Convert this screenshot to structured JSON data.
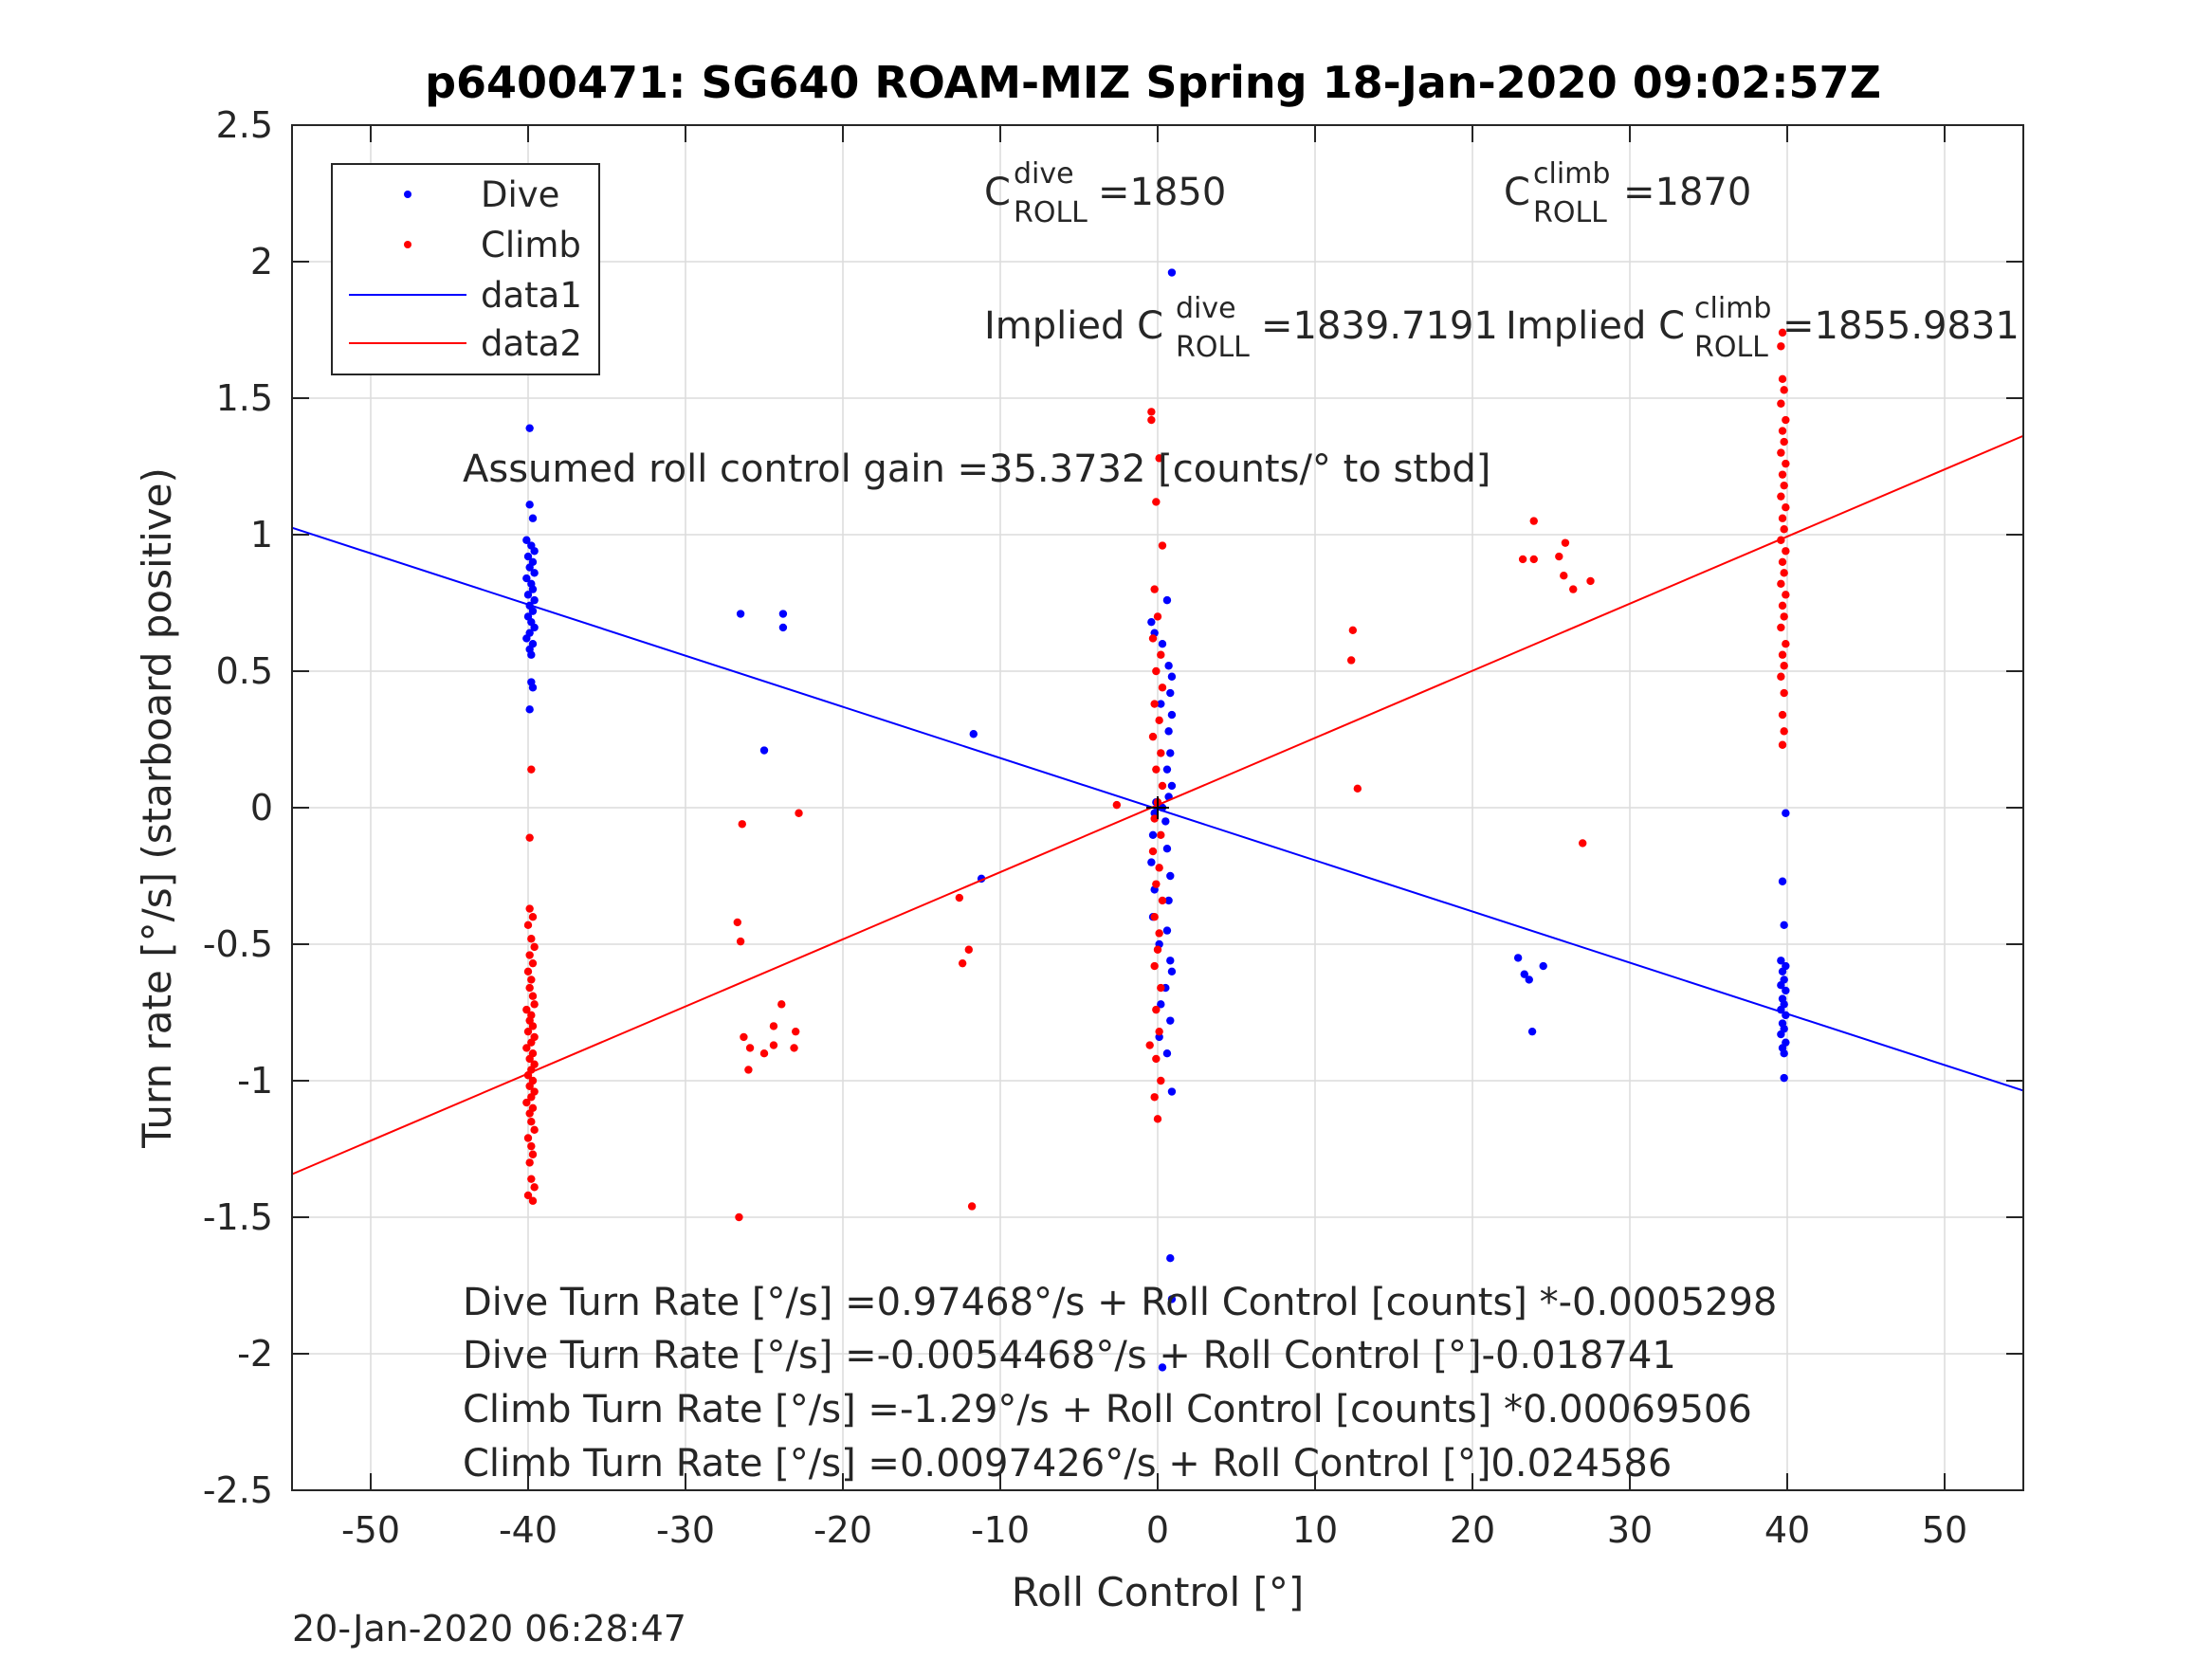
{
  "chart_data": {
    "type": "scatter",
    "title": "p6400471: SG640 ROAM-MIZ Spring 18-Jan-2020 09:02:57Z",
    "xlabel": "Roll Control [°]",
    "ylabel": "Turn rate [°/s] (starboard positive)",
    "xlim": [
      -55,
      55
    ],
    "ylim": [
      -2.5,
      2.5
    ],
    "xticks": [
      -50,
      -40,
      -30,
      -20,
      -10,
      0,
      10,
      20,
      30,
      40,
      50
    ],
    "yticks": [
      -2.5,
      -2,
      -1.5,
      -1,
      -0.5,
      0,
      0.5,
      1,
      1.5,
      2,
      2.5
    ],
    "xtick_labels": [
      "-50",
      "-40",
      "-30",
      "-20",
      "-10",
      "0",
      "10",
      "20",
      "30",
      "40",
      "50"
    ],
    "ytick_labels": [
      "-2.5",
      "-2",
      "-1.5",
      "-1",
      "-0.5",
      "0",
      "0.5",
      "1",
      "1.5",
      "2",
      "2.5"
    ],
    "grid": true,
    "legend_position": "top-left",
    "legend": [
      "Dive",
      "Climb",
      "data1",
      "data2"
    ],
    "colors": {
      "dive": "#0000ff",
      "climb": "#ff0000"
    },
    "series": [
      {
        "name": "Dive",
        "marker": "dot",
        "color": "#0000ff",
        "points": [
          [
            -39.9,
            1.39
          ],
          [
            -39.9,
            1.11
          ],
          [
            -39.7,
            1.06
          ],
          [
            -40.1,
            0.98
          ],
          [
            -39.8,
            0.96
          ],
          [
            -39.6,
            0.94
          ],
          [
            -40.0,
            0.92
          ],
          [
            -39.7,
            0.9
          ],
          [
            -39.9,
            0.88
          ],
          [
            -39.6,
            0.86
          ],
          [
            -40.1,
            0.84
          ],
          [
            -39.8,
            0.82
          ],
          [
            -39.7,
            0.8
          ],
          [
            -40.0,
            0.78
          ],
          [
            -39.6,
            0.76
          ],
          [
            -39.9,
            0.74
          ],
          [
            -39.7,
            0.72
          ],
          [
            -40.0,
            0.7
          ],
          [
            -39.8,
            0.68
          ],
          [
            -39.6,
            0.66
          ],
          [
            -39.9,
            0.64
          ],
          [
            -40.1,
            0.62
          ],
          [
            -39.7,
            0.6
          ],
          [
            -39.9,
            0.58
          ],
          [
            -39.8,
            0.56
          ],
          [
            -39.8,
            0.46
          ],
          [
            -39.7,
            0.44
          ],
          [
            -39.9,
            0.36
          ],
          [
            -26.5,
            0.71
          ],
          [
            -23.8,
            0.71
          ],
          [
            -23.8,
            0.66
          ],
          [
            -25.0,
            0.21
          ],
          [
            -11.7,
            0.27
          ],
          [
            -11.2,
            -0.26
          ],
          [
            0.9,
            1.96
          ],
          [
            0.6,
            0.76
          ],
          [
            -0.4,
            0.68
          ],
          [
            -0.2,
            0.64
          ],
          [
            0.3,
            0.6
          ],
          [
            0.7,
            0.52
          ],
          [
            0.9,
            0.48
          ],
          [
            0.8,
            0.42
          ],
          [
            0.2,
            0.38
          ],
          [
            0.9,
            0.34
          ],
          [
            0.7,
            0.28
          ],
          [
            0.8,
            0.2
          ],
          [
            0.6,
            0.14
          ],
          [
            0.9,
            0.08
          ],
          [
            0.7,
            0.04
          ],
          [
            -0.1,
            0.02
          ],
          [
            0.3,
            0.0
          ],
          [
            -0.2,
            -0.02
          ],
          [
            0.5,
            -0.05
          ],
          [
            -0.3,
            -0.1
          ],
          [
            0.6,
            -0.15
          ],
          [
            -0.4,
            -0.2
          ],
          [
            0.8,
            -0.25
          ],
          [
            -0.2,
            -0.3
          ],
          [
            0.7,
            -0.34
          ],
          [
            -0.3,
            -0.4
          ],
          [
            0.6,
            -0.45
          ],
          [
            0.1,
            -0.5
          ],
          [
            0.8,
            -0.56
          ],
          [
            0.9,
            -0.6
          ],
          [
            0.5,
            -0.66
          ],
          [
            0.2,
            -0.72
          ],
          [
            0.8,
            -0.78
          ],
          [
            0.1,
            -0.84
          ],
          [
            0.6,
            -0.9
          ],
          [
            0.9,
            -1.04
          ],
          [
            0.8,
            -1.65
          ],
          [
            0.9,
            -1.8
          ],
          [
            0.3,
            -2.05
          ],
          [
            22.9,
            -0.55
          ],
          [
            23.3,
            -0.61
          ],
          [
            23.6,
            -0.63
          ],
          [
            24.5,
            -0.58
          ],
          [
            23.8,
            -0.82
          ],
          [
            39.9,
            -0.02
          ],
          [
            39.7,
            -0.27
          ],
          [
            39.8,
            -0.43
          ],
          [
            39.6,
            -0.56
          ],
          [
            39.9,
            -0.58
          ],
          [
            39.7,
            -0.6
          ],
          [
            39.8,
            -0.63
          ],
          [
            39.6,
            -0.65
          ],
          [
            39.9,
            -0.67
          ],
          [
            39.7,
            -0.7
          ],
          [
            39.8,
            -0.72
          ],
          [
            39.6,
            -0.74
          ],
          [
            39.9,
            -0.76
          ],
          [
            39.7,
            -0.79
          ],
          [
            39.8,
            -0.81
          ],
          [
            39.6,
            -0.83
          ],
          [
            39.9,
            -0.86
          ],
          [
            39.7,
            -0.88
          ],
          [
            39.8,
            -0.9
          ],
          [
            39.8,
            -0.99
          ]
        ]
      },
      {
        "name": "Climb",
        "marker": "dot",
        "color": "#ff0000",
        "points": [
          [
            -39.8,
            0.14
          ],
          [
            -39.9,
            -0.11
          ],
          [
            -39.9,
            -0.37
          ],
          [
            -39.7,
            -0.4
          ],
          [
            -40.0,
            -0.43
          ],
          [
            -39.8,
            -0.48
          ],
          [
            -39.6,
            -0.51
          ],
          [
            -39.9,
            -0.54
          ],
          [
            -39.7,
            -0.57
          ],
          [
            -40.0,
            -0.6
          ],
          [
            -39.8,
            -0.63
          ],
          [
            -39.9,
            -0.66
          ],
          [
            -39.7,
            -0.69
          ],
          [
            -39.6,
            -0.72
          ],
          [
            -40.1,
            -0.74
          ],
          [
            -39.8,
            -0.76
          ],
          [
            -39.9,
            -0.78
          ],
          [
            -39.7,
            -0.8
          ],
          [
            -40.0,
            -0.82
          ],
          [
            -39.6,
            -0.84
          ],
          [
            -39.8,
            -0.86
          ],
          [
            -40.1,
            -0.88
          ],
          [
            -39.7,
            -0.9
          ],
          [
            -39.9,
            -0.92
          ],
          [
            -39.6,
            -0.94
          ],
          [
            -39.8,
            -0.96
          ],
          [
            -40.0,
            -0.98
          ],
          [
            -39.7,
            -1.0
          ],
          [
            -39.9,
            -1.02
          ],
          [
            -39.6,
            -1.04
          ],
          [
            -39.8,
            -1.06
          ],
          [
            -40.1,
            -1.08
          ],
          [
            -39.7,
            -1.1
          ],
          [
            -39.9,
            -1.12
          ],
          [
            -39.8,
            -1.15
          ],
          [
            -39.6,
            -1.18
          ],
          [
            -40.0,
            -1.21
          ],
          [
            -39.8,
            -1.24
          ],
          [
            -39.7,
            -1.27
          ],
          [
            -39.9,
            -1.3
          ],
          [
            -39.8,
            -1.36
          ],
          [
            -39.6,
            -1.39
          ],
          [
            -40.0,
            -1.42
          ],
          [
            -39.7,
            -1.44
          ],
          [
            -26.7,
            -0.42
          ],
          [
            -26.5,
            -0.49
          ],
          [
            -26.4,
            -0.06
          ],
          [
            -22.8,
            -0.02
          ],
          [
            -26.3,
            -0.84
          ],
          [
            -25.9,
            -0.88
          ],
          [
            -25.0,
            -0.9
          ],
          [
            -24.4,
            -0.8
          ],
          [
            -23.9,
            -0.72
          ],
          [
            -24.4,
            -0.87
          ],
          [
            -23.0,
            -0.82
          ],
          [
            -23.1,
            -0.88
          ],
          [
            -26.0,
            -0.96
          ],
          [
            -26.6,
            -1.5
          ],
          [
            -12.6,
            -0.33
          ],
          [
            -12.4,
            -0.57
          ],
          [
            -12.0,
            -0.52
          ],
          [
            -11.8,
            -1.46
          ],
          [
            -2.6,
            0.01
          ],
          [
            -0.4,
            1.45
          ],
          [
            -0.4,
            1.42
          ],
          [
            0.1,
            1.28
          ],
          [
            -0.1,
            1.12
          ],
          [
            0.3,
            0.96
          ],
          [
            -0.2,
            0.8
          ],
          [
            0.0,
            0.7
          ],
          [
            -0.3,
            0.62
          ],
          [
            0.2,
            0.56
          ],
          [
            -0.1,
            0.5
          ],
          [
            0.3,
            0.44
          ],
          [
            -0.2,
            0.38
          ],
          [
            0.1,
            0.32
          ],
          [
            -0.3,
            0.26
          ],
          [
            0.2,
            0.2
          ],
          [
            -0.1,
            0.14
          ],
          [
            0.3,
            0.08
          ],
          [
            0.0,
            0.02
          ],
          [
            -0.2,
            -0.04
          ],
          [
            0.2,
            -0.1
          ],
          [
            -0.3,
            -0.16
          ],
          [
            0.1,
            -0.22
          ],
          [
            -0.1,
            -0.28
          ],
          [
            0.3,
            -0.34
          ],
          [
            -0.2,
            -0.4
          ],
          [
            0.1,
            -0.46
          ],
          [
            0.0,
            -0.52
          ],
          [
            -0.2,
            -0.58
          ],
          [
            0.2,
            -0.66
          ],
          [
            -0.1,
            -0.74
          ],
          [
            0.1,
            -0.82
          ],
          [
            -0.5,
            -0.87
          ],
          [
            -0.1,
            -0.92
          ],
          [
            0.2,
            -1.0
          ],
          [
            -0.2,
            -1.06
          ],
          [
            0.0,
            -1.14
          ],
          [
            12.4,
            0.65
          ],
          [
            12.3,
            0.54
          ],
          [
            12.7,
            0.07
          ],
          [
            23.2,
            0.91
          ],
          [
            23.9,
            0.91
          ],
          [
            23.9,
            1.05
          ],
          [
            25.5,
            0.92
          ],
          [
            25.9,
            0.97
          ],
          [
            25.8,
            0.85
          ],
          [
            26.4,
            0.8
          ],
          [
            27.5,
            0.83
          ],
          [
            27.0,
            -0.13
          ],
          [
            39.7,
            1.74
          ],
          [
            39.6,
            1.69
          ],
          [
            39.7,
            1.57
          ],
          [
            39.8,
            1.53
          ],
          [
            39.6,
            1.48
          ],
          [
            39.9,
            1.42
          ],
          [
            39.7,
            1.38
          ],
          [
            39.8,
            1.34
          ],
          [
            39.6,
            1.3
          ],
          [
            39.9,
            1.26
          ],
          [
            39.7,
            1.22
          ],
          [
            39.8,
            1.18
          ],
          [
            39.6,
            1.14
          ],
          [
            39.9,
            1.1
          ],
          [
            39.7,
            1.06
          ],
          [
            39.8,
            1.02
          ],
          [
            39.6,
            0.98
          ],
          [
            39.9,
            0.94
          ],
          [
            39.7,
            0.9
          ],
          [
            39.8,
            0.86
          ],
          [
            39.6,
            0.82
          ],
          [
            39.9,
            0.78
          ],
          [
            39.7,
            0.74
          ],
          [
            39.8,
            0.7
          ],
          [
            39.6,
            0.66
          ],
          [
            39.9,
            0.6
          ],
          [
            39.7,
            0.56
          ],
          [
            39.8,
            0.52
          ],
          [
            39.6,
            0.48
          ],
          [
            39.8,
            0.42
          ],
          [
            39.7,
            0.34
          ],
          [
            39.8,
            0.28
          ],
          [
            39.7,
            0.23
          ]
        ]
      },
      {
        "name": "data1",
        "type": "line",
        "color": "#0000ff",
        "x": [
          -55,
          55
        ],
        "y": [
          1.0253,
          -1.0362
        ]
      },
      {
        "name": "data2",
        "type": "line",
        "color": "#ff0000",
        "x": [
          -55,
          55
        ],
        "y": [
          -1.3425,
          1.362
        ]
      }
    ],
    "annotations": {
      "c_dive_base": "C",
      "c_dive_sup": "dive",
      "c_dive_sub": "ROLL",
      "c_dive_value": " =1850",
      "c_climb_base": "C",
      "c_climb_sup": "climb",
      "c_climb_sub": "ROLL",
      "c_climb_value": " =1870",
      "implied_dive_prefix": "Implied C",
      "implied_dive_sup": "dive",
      "implied_dive_sub": "ROLL",
      "implied_dive_value": " =1839.7191",
      "implied_climb_prefix": "Implied C",
      "implied_climb_sup": "climb",
      "implied_climb_sub": "ROLL",
      "implied_climb_value": " =1855.9831",
      "gain": "Assumed roll control gain =35.3732 [counts/° to stbd]",
      "eq1": "Dive Turn Rate [°/s] =0.97468°/s + Roll Control [counts] *-0.0005298",
      "eq2": "Dive Turn Rate [°/s] =-0.0054468°/s + Roll Control [°]-0.018741",
      "eq3": "Climb Turn Rate [°/s] =-1.29°/s + Roll Control [counts] *0.00069506",
      "eq4": "Climb Turn Rate [°/s] =0.0097426°/s + Roll Control [°]0.024586"
    },
    "timestamp": "20-Jan-2020 06:28:47"
  }
}
